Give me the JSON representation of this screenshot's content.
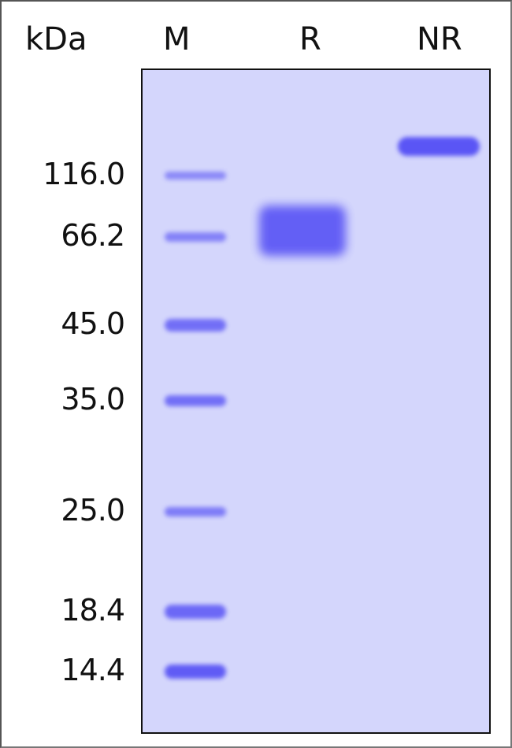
{
  "header": {
    "unit": "kDa",
    "lanes": [
      "M",
      "R",
      "NR"
    ]
  },
  "marker_weights": [
    "116.0",
    "66.2",
    "45.0",
    "35.0",
    "25.0",
    "18.4",
    "14.4"
  ],
  "colors": {
    "gel_background": "#d4d6fc",
    "band": "#5a55f5"
  }
}
